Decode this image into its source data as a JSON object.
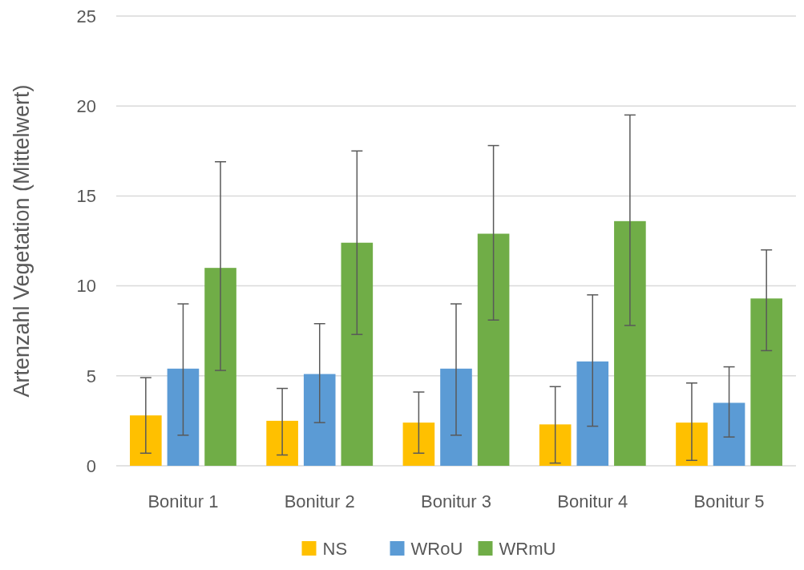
{
  "chart_data": {
    "type": "bar",
    "ylabel": "Artenzahl Vegetation (Mittelwert)",
    "categories": [
      "Bonitur 1",
      "Bonitur 2",
      "Bonitur 3",
      "Bonitur 4",
      "Bonitur 5"
    ],
    "series": [
      {
        "name": "NS",
        "color": "#ffc000",
        "values": [
          2.8,
          2.5,
          2.4,
          2.3,
          2.4
        ],
        "errors": [
          [
            0.7,
            4.9
          ],
          [
            0.6,
            4.3
          ],
          [
            0.7,
            4.1
          ],
          [
            0.15,
            4.4
          ],
          [
            0.3,
            4.6
          ]
        ]
      },
      {
        "name": "WRoU",
        "color": "#5b9bd5",
        "values": [
          5.4,
          5.1,
          5.4,
          5.8,
          3.5
        ],
        "errors": [
          [
            1.7,
            9.0
          ],
          [
            2.4,
            7.9
          ],
          [
            1.7,
            9.0
          ],
          [
            2.2,
            9.5
          ],
          [
            1.6,
            5.5
          ]
        ]
      },
      {
        "name": "WRmU",
        "color": "#70ad47",
        "values": [
          11.0,
          12.4,
          12.9,
          13.6,
          9.3
        ],
        "errors": [
          [
            5.3,
            16.9
          ],
          [
            7.3,
            17.5
          ],
          [
            8.1,
            17.8
          ],
          [
            7.8,
            19.5
          ],
          [
            6.4,
            12.0
          ]
        ]
      }
    ],
    "ylim": [
      0,
      25
    ],
    "yticks": [
      0,
      5,
      10,
      15,
      20,
      25
    ],
    "grid": "y",
    "legend": "bottom"
  }
}
